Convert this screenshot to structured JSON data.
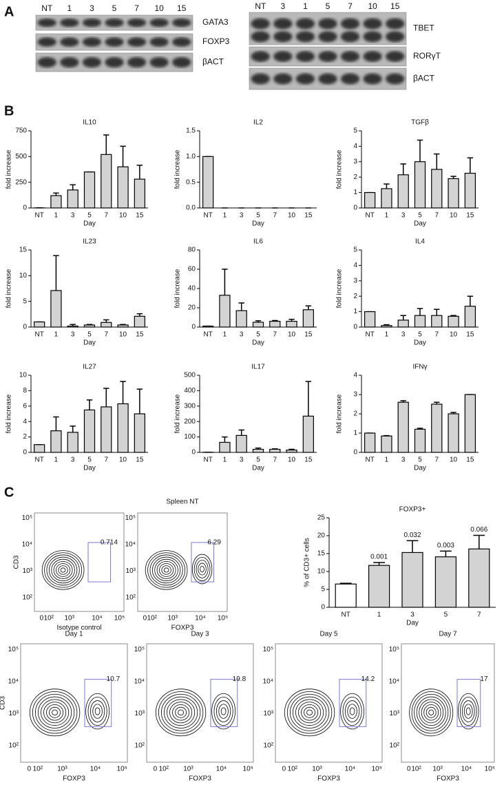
{
  "panel_labels": [
    "A",
    "B",
    "C"
  ],
  "blots": [
    {
      "lanes": [
        "NT",
        "1",
        "3",
        "5",
        "7",
        "10",
        "15"
      ],
      "rows": [
        "GATA3",
        "FOXP3",
        "βACT"
      ]
    },
    {
      "lanes": [
        "NT",
        "3",
        "1",
        "5",
        "7",
        "10",
        "15"
      ],
      "rows": [
        "TBET",
        "RORγT",
        "βACT"
      ]
    }
  ],
  "chart_data": [
    {
      "type": "bar",
      "title": "IL10",
      "y_label": "fold increase",
      "x_label": "Day",
      "categories": [
        "NT",
        "1",
        "3",
        "5",
        "7",
        "10",
        "15"
      ],
      "values": [
        1,
        120,
        175,
        350,
        520,
        400,
        280
      ],
      "errors": [
        0,
        25,
        50,
        0,
        190,
        200,
        135
      ],
      "color": "#d3d3d3",
      "ylim": [
        0,
        750
      ],
      "yticks": [
        0,
        250,
        500,
        750
      ]
    },
    {
      "type": "bar",
      "title": "IL2",
      "y_label": "fold increase",
      "x_label": "Day",
      "categories": [
        "NT",
        "1",
        "3",
        "5",
        "7",
        "10",
        "15"
      ],
      "values": [
        1,
        0,
        0,
        0,
        0,
        0,
        0
      ],
      "errors": [
        0,
        0,
        0,
        0,
        0,
        0,
        0
      ],
      "color": "#d3d3d3",
      "ylim": [
        0,
        1.5
      ],
      "yticks": [
        {
          "value": 0,
          "label": "0.0"
        },
        0.5,
        {
          "value": 1,
          "label": "1.0"
        },
        1.5
      ]
    },
    {
      "type": "bar",
      "title": "TGFβ",
      "y_label": "fold increase",
      "x_label": "Day",
      "categories": [
        "NT",
        "1",
        "3",
        "5",
        "7",
        "10",
        "15"
      ],
      "values": [
        1,
        1.25,
        2.15,
        3.0,
        2.5,
        1.9,
        2.25
      ],
      "errors": [
        0,
        0.3,
        0.7,
        1.4,
        1.0,
        0.15,
        1.0
      ],
      "color": "#d3d3d3",
      "ylim": [
        0,
        5
      ],
      "yticks": [
        0,
        1,
        2,
        3,
        4,
        5
      ]
    },
    {
      "type": "bar",
      "title": "IL23",
      "y_label": "fold increase",
      "x_label": "Day",
      "categories": [
        "NT",
        "1",
        "3",
        "5",
        "7",
        "10",
        "15"
      ],
      "values": [
        1,
        7.1,
        0.2,
        0.4,
        0.9,
        0.4,
        2.1
      ],
      "errors": [
        0,
        6.8,
        0.3,
        0.1,
        0.5,
        0.1,
        0.5
      ],
      "color": "#d3d3d3",
      "ylim": [
        0,
        15
      ],
      "yticks": [
        0,
        5,
        10,
        15
      ]
    },
    {
      "type": "bar",
      "title": "IL6",
      "y_label": "fold increase",
      "x_label": "Day",
      "categories": [
        "NT",
        "1",
        "3",
        "5",
        "7",
        "10",
        "15"
      ],
      "values": [
        1,
        33,
        17,
        5,
        6,
        6,
        18
      ],
      "errors": [
        0,
        27,
        8,
        1.5,
        0.8,
        2,
        4
      ],
      "color": "#d3d3d3",
      "ylim": [
        0,
        80
      ],
      "yticks": [
        0,
        20,
        40,
        60,
        80
      ]
    },
    {
      "type": "bar",
      "title": "IL4",
      "y_label": "fold increase",
      "x_label": "Day",
      "categories": [
        "NT",
        "1",
        "3",
        "5",
        "7",
        "10",
        "15"
      ],
      "values": [
        1,
        0.1,
        0.45,
        0.75,
        0.75,
        0.7,
        1.35
      ],
      "errors": [
        0,
        0.05,
        0.3,
        0.45,
        0.4,
        0.05,
        0.65
      ],
      "color": "#d3d3d3",
      "ylim": [
        0,
        5
      ],
      "yticks": [
        0,
        1,
        2,
        3,
        4,
        5
      ]
    },
    {
      "type": "bar",
      "title": "IL27",
      "y_label": "fold increase",
      "x_label": "Day",
      "categories": [
        "NT",
        "1",
        "3",
        "5",
        "7",
        "10",
        "15"
      ],
      "values": [
        1,
        2.8,
        2.6,
        5.5,
        5.9,
        6.3,
        5.0
      ],
      "errors": [
        0,
        1.8,
        0.8,
        1.3,
        2.4,
        2.9,
        3.2
      ],
      "color": "#d3d3d3",
      "ylim": [
        0,
        10
      ],
      "yticks": [
        0,
        2,
        4,
        6,
        8,
        10
      ]
    },
    {
      "type": "bar",
      "title": "IL17",
      "y_label": "fold increase",
      "x_label": "Day",
      "categories": [
        "NT",
        "1",
        "3",
        "5",
        "7",
        "10",
        "15"
      ],
      "values": [
        1,
        65,
        110,
        20,
        20,
        15,
        235
      ],
      "errors": [
        0,
        35,
        35,
        8,
        3,
        5,
        225
      ],
      "color": "#d3d3d3",
      "ylim": [
        0,
        500
      ],
      "yticks": [
        0,
        100,
        200,
        300,
        400,
        500
      ]
    },
    {
      "type": "bar",
      "title": "IFNγ",
      "y_label": "fold increase",
      "x_label": "Day",
      "categories": [
        "NT",
        "1",
        "3",
        "5",
        "7",
        "10",
        "15"
      ],
      "values": [
        1,
        0.85,
        2.6,
        1.2,
        2.5,
        2.0,
        3.0
      ],
      "errors": [
        0,
        0.02,
        0.08,
        0.05,
        0.1,
        0.07,
        0
      ],
      "color": "#d3d3d3",
      "ylim": [
        0,
        4
      ],
      "yticks": [
        0,
        1,
        2,
        3,
        4
      ]
    },
    {
      "type": "bar",
      "title": "FOXP3+",
      "y_label": "% of CD3+ cells",
      "x_label": "Day",
      "categories": [
        "NT",
        "1",
        "3",
        "5",
        "7"
      ],
      "values": [
        6.5,
        11.7,
        15.3,
        14.1,
        16.3
      ],
      "errors": [
        0.2,
        0.8,
        3.3,
        1.6,
        3.8
      ],
      "colors": [
        "#ffffff",
        "#d3d3d3",
        "#d3d3d3",
        "#d3d3d3",
        "#d3d3d3"
      ],
      "annotations": [
        null,
        0.001,
        0.032,
        0.003,
        0.066
      ],
      "ylim": [
        0,
        25
      ],
      "yticks": [
        0,
        5,
        10,
        15,
        20,
        25
      ]
    }
  ],
  "flow": {
    "title": "Spleen NT",
    "x_ticks": [
      "0",
      "10²",
      "10³",
      "10⁴",
      "10⁵"
    ],
    "y_ticks": [
      "10²",
      "10³",
      "10⁴",
      "10⁵"
    ],
    "top": [
      {
        "y_label": "CD3",
        "x_label": "Isotype control",
        "gate": "0.714"
      },
      {
        "x_label": "FOXP3",
        "gate": "6.29"
      }
    ],
    "bottom": [
      {
        "title": "Day 1",
        "y_label": "CD3",
        "x_label": "FOXP3",
        "gate": "10.7"
      },
      {
        "title": "Day 3",
        "x_label": "FOXP3",
        "gate": "19.8"
      },
      {
        "title": "Day 5",
        "x_label": "FOXP3",
        "gate": "14.2"
      },
      {
        "title": "Day 7",
        "x_label": "FOXP3",
        "gate": "17"
      }
    ]
  }
}
